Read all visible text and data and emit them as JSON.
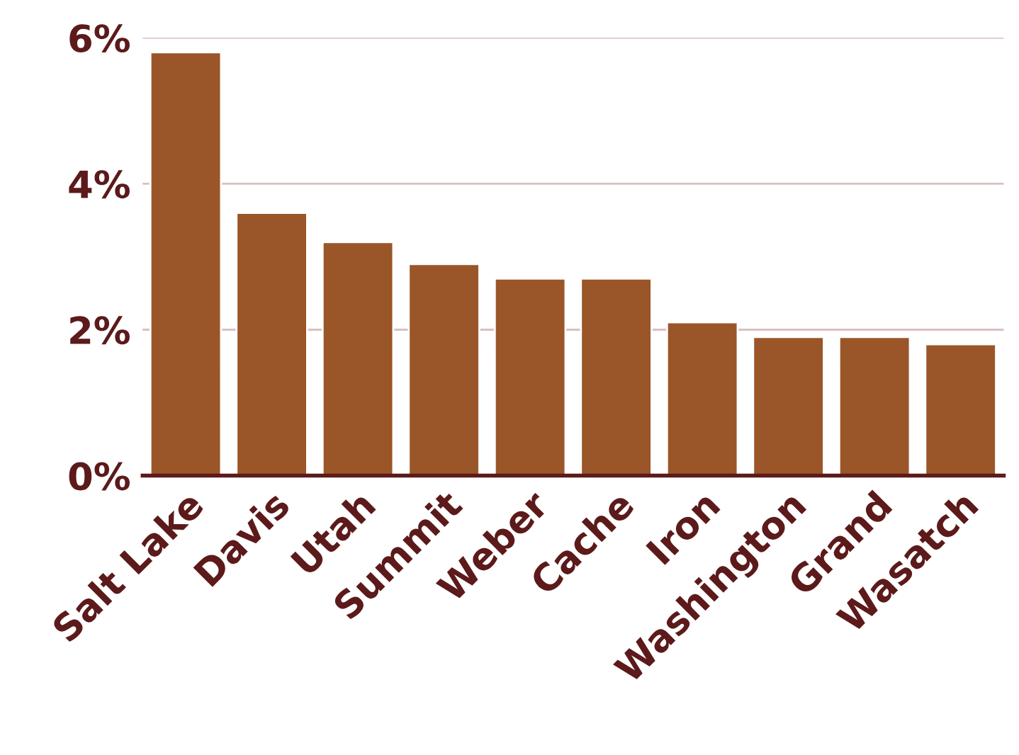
{
  "chart_data": {
    "type": "bar",
    "categories": [
      "Salt Lake",
      "Davis",
      "Utah",
      "Summit",
      "Weber",
      "Cache",
      "Iron",
      "Washington",
      "Grand",
      "Wasatch"
    ],
    "values": [
      5.8,
      3.6,
      3.2,
      2.9,
      2.7,
      2.7,
      2.1,
      1.9,
      1.9,
      1.8
    ],
    "color": "#9a5628",
    "ylim": [
      0,
      6
    ],
    "yticks": [
      {
        "value": 0,
        "label": "0%"
      },
      {
        "value": 2,
        "label": "2%"
      },
      {
        "value": 4,
        "label": "4%"
      },
      {
        "value": 6,
        "label": "6%"
      }
    ],
    "grid": "y",
    "legend": false
  }
}
